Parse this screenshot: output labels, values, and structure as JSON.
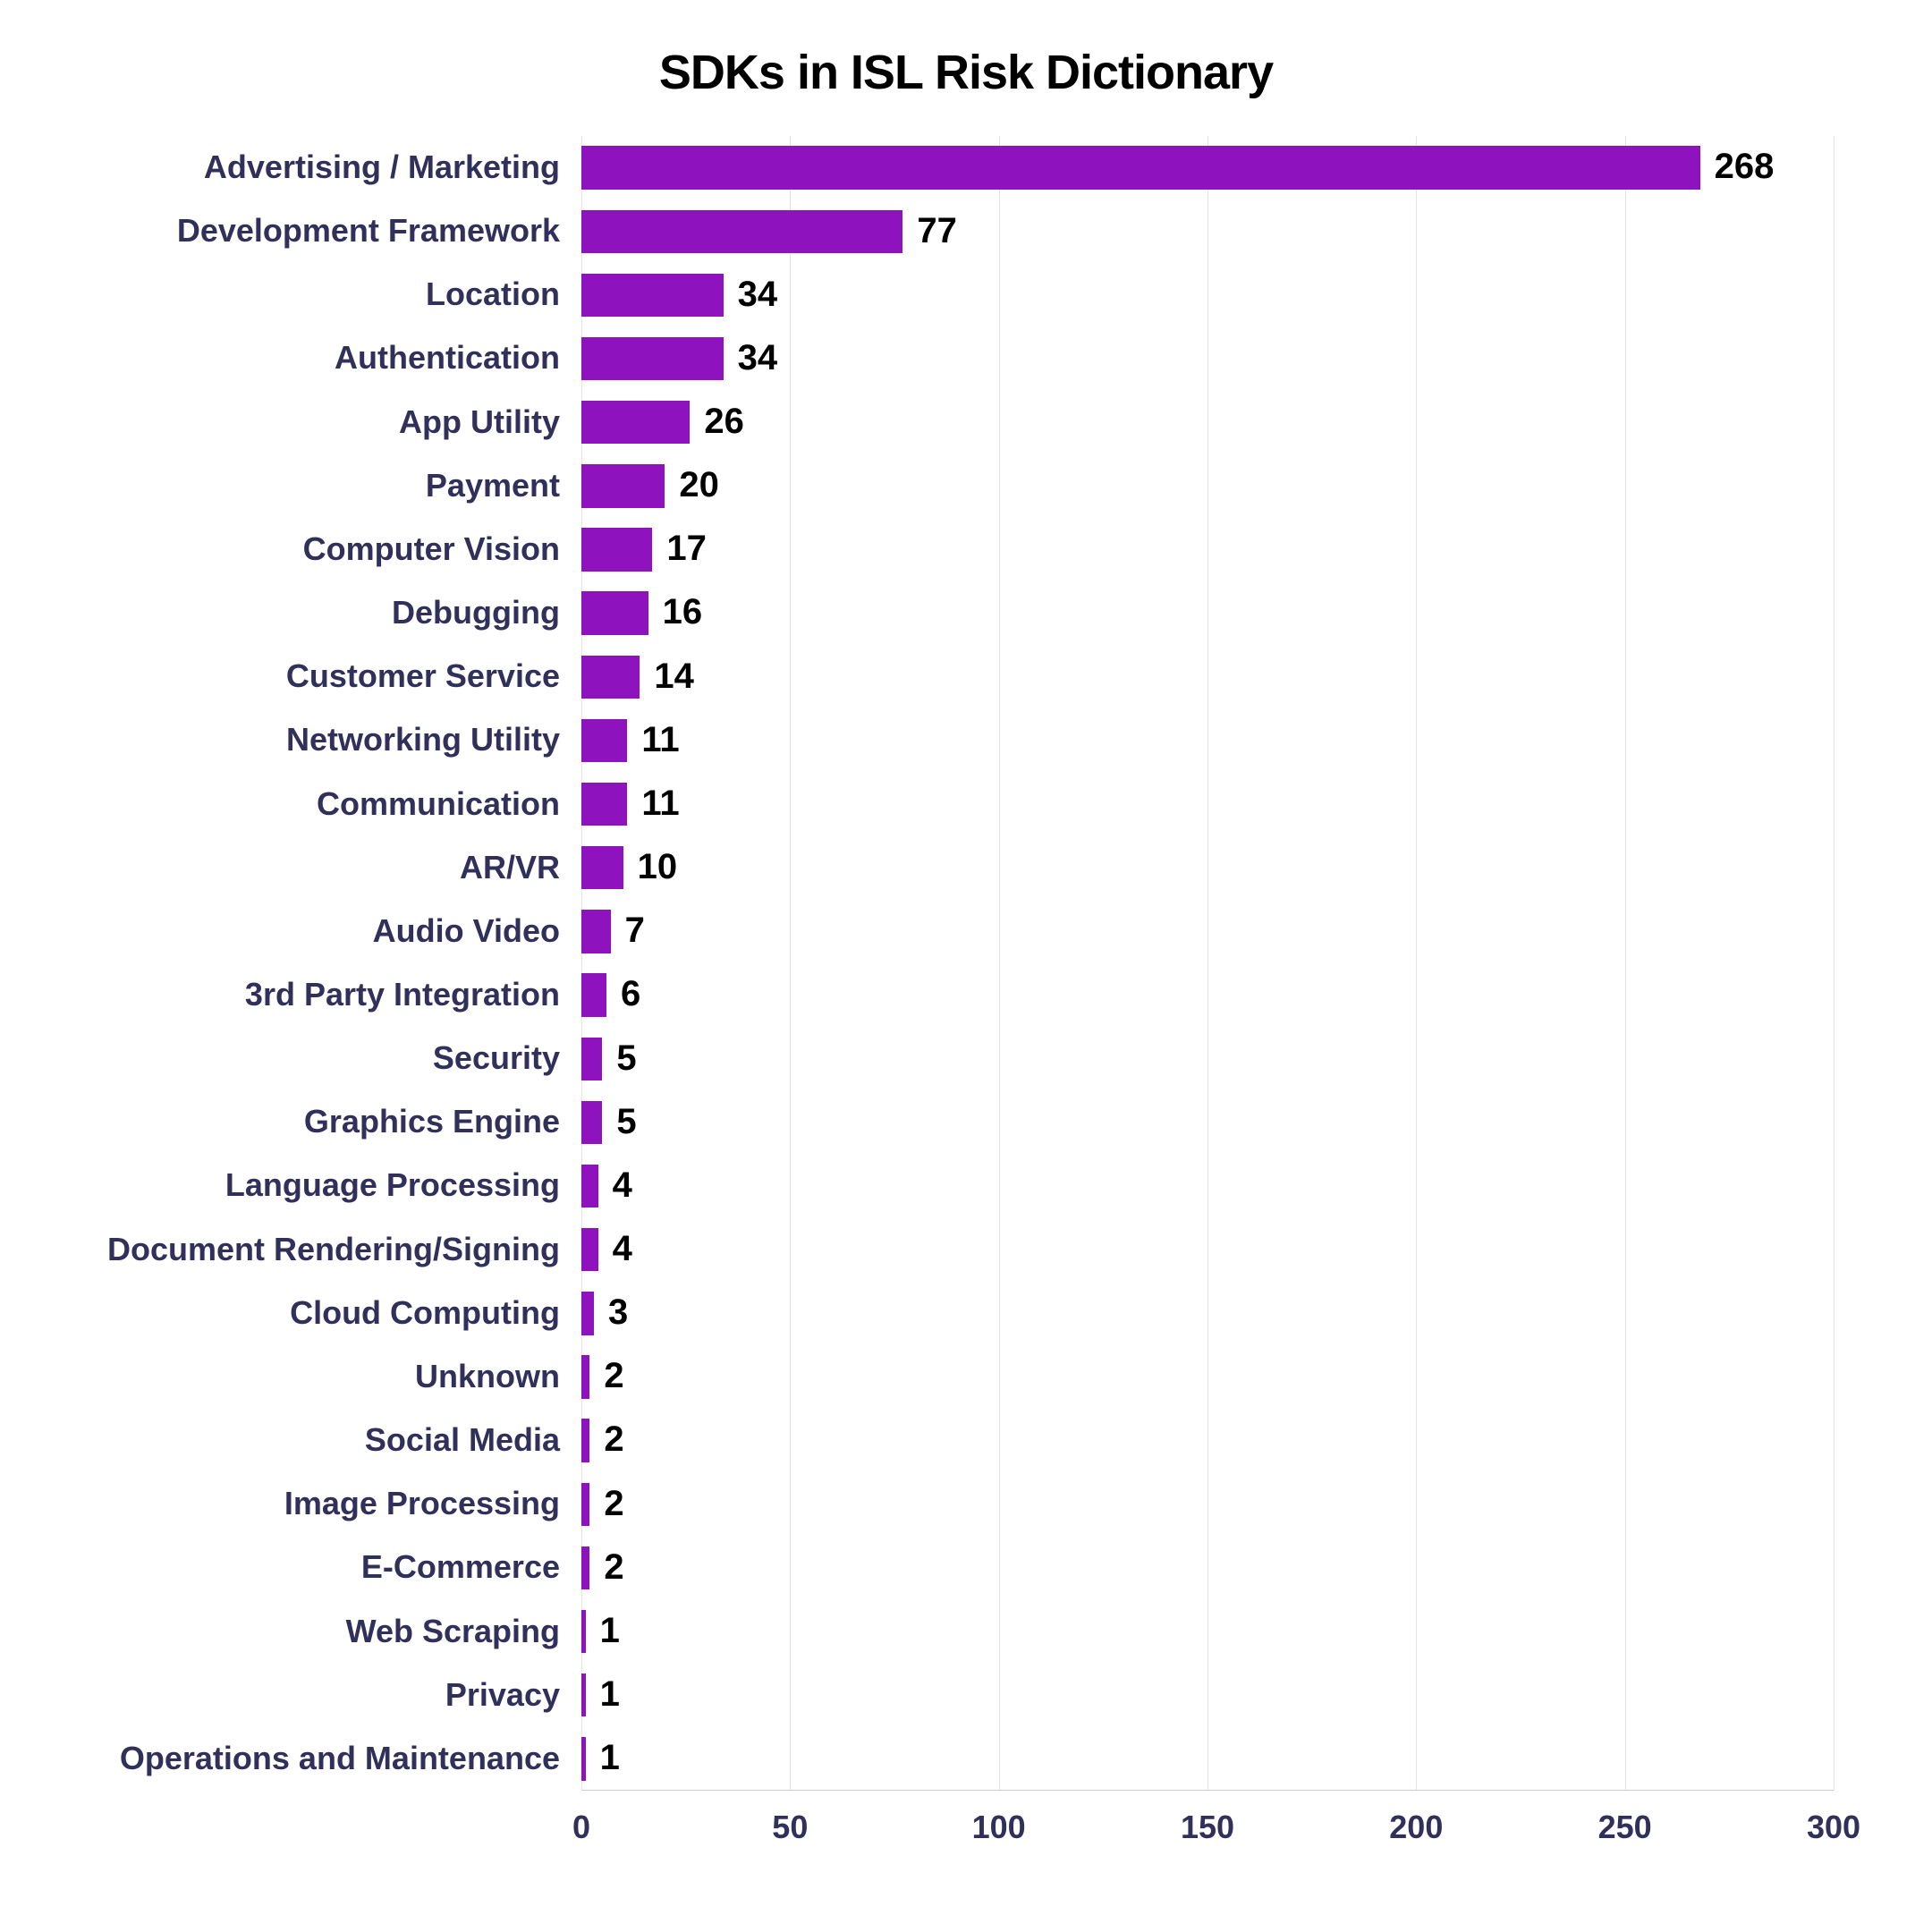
{
  "chart": {
    "type": "bar",
    "orientation": "horizontal",
    "title": "SDKs in ISL Risk Dictionary",
    "title_fontsize": 54,
    "title_color": "#000000",
    "title_fontweight": 900,
    "background_color": "#ffffff",
    "bar_color": "#8e12bd",
    "y_label_color": "#31305b",
    "y_label_fontsize": 36,
    "y_label_fontweight": 700,
    "value_label_color": "#000000",
    "value_label_fontsize": 40,
    "value_label_fontweight": 900,
    "x_tick_color": "#31305b",
    "x_tick_fontsize": 36,
    "x_tick_fontweight": 700,
    "grid_color": "#e5e5e5",
    "xlim": [
      0,
      300
    ],
    "x_ticks": [
      0,
      50,
      100,
      150,
      200,
      250,
      300
    ],
    "bar_height_ratio": 0.68,
    "categories": [
      "Advertising / Marketing",
      "Development Framework",
      "Location",
      "Authentication",
      "App Utility",
      "Payment",
      "Computer Vision",
      "Debugging",
      "Customer Service",
      "Networking Utility",
      "Communication",
      "AR/VR",
      "Audio Video",
      "3rd Party Integration",
      "Security",
      "Graphics Engine",
      "Language Processing",
      "Document Rendering/Signing",
      "Cloud Computing",
      "Unknown",
      "Social Media",
      "Image Processing",
      "E-Commerce",
      "Web Scraping",
      "Privacy",
      "Operations and Maintenance"
    ],
    "values": [
      268,
      77,
      34,
      34,
      26,
      20,
      17,
      16,
      14,
      11,
      11,
      10,
      7,
      6,
      5,
      5,
      4,
      4,
      3,
      2,
      2,
      2,
      2,
      1,
      1,
      1
    ]
  }
}
